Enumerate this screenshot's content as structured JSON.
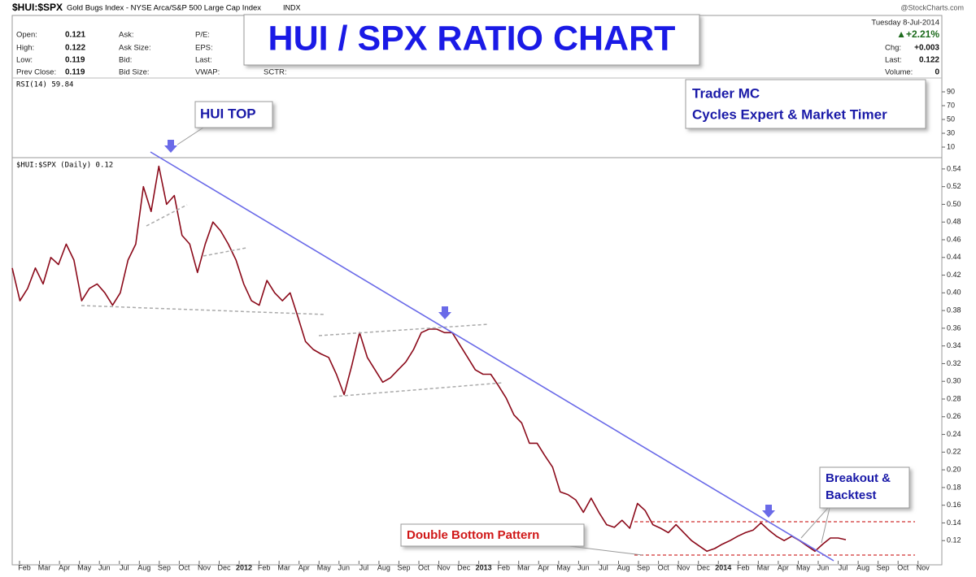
{
  "header": {
    "symbol": "$HUI:$SPX",
    "description": "Gold Bugs Index - NYSE Arca/S&P 500 Large Cap Index",
    "exchange": "INDX",
    "source": "@StockCharts.com",
    "date": "Tuesday  8-Jul-2014"
  },
  "quote": {
    "open_label": "Open:",
    "open": "0.121",
    "high_label": "High:",
    "high": "0.122",
    "low_label": "Low:",
    "low": "0.119",
    "prev_label": "Prev Close:",
    "prev": "0.119",
    "ask": "Ask:",
    "ask_size": "Ask Size:",
    "bid": "Bid:",
    "bid_size": "Bid Size:",
    "pe": "P/E:",
    "eps": "EPS:",
    "last_mid": "Last:",
    "vwap": "VWAP:",
    "sctr": "SCTR:",
    "change_pct": "▲+2.21%",
    "chg_label": "Chg:",
    "chg": "+0.003",
    "last_label": "Last:",
    "last": "0.122",
    "volume_label": "Volume:",
    "volume": "0"
  },
  "rsi": {
    "label": "RSI(14) 59.84",
    "ylim": [
      0,
      100
    ],
    "yticks": [
      10,
      30,
      50,
      70,
      90
    ]
  },
  "chart_data": {
    "type": "line",
    "title": "HUI / SPX RATIO CHART",
    "legend": "$HUI:$SPX (Daily) 0.12",
    "annotations": {
      "top": "HUI TOP",
      "author": "Trader MC",
      "author_sub": "Cycles Expert & Market Timer",
      "breakout1": "Breakout &",
      "breakout2": "Backtest",
      "double_bottom": "Double Bottom Pattern"
    },
    "xticks": [
      "Feb",
      "Mar",
      "Apr",
      "May",
      "Jun",
      "Jul",
      "Aug",
      "Sep",
      "Oct",
      "Nov",
      "Dec",
      "2012",
      "Feb",
      "Mar",
      "Apr",
      "May",
      "Jun",
      "Jul",
      "Aug",
      "Sep",
      "Oct",
      "Nov",
      "Dec",
      "2013",
      "Feb",
      "Mar",
      "Apr",
      "May",
      "Jun",
      "Jul",
      "Aug",
      "Sep",
      "Oct",
      "Nov",
      "Dec",
      "2014",
      "Feb",
      "Mar",
      "Apr",
      "May",
      "Jun",
      "Jul",
      "Aug",
      "Sep",
      "Oct",
      "Nov"
    ],
    "ylim": [
      0.1,
      0.55
    ],
    "yticks": [
      0.12,
      0.14,
      0.16,
      0.18,
      {
        "value": 0.2,
        "label": "0.20"
      },
      0.22,
      0.24,
      0.26,
      0.28,
      {
        "value": 0.3,
        "label": "0.30"
      },
      0.32,
      0.34,
      0.36,
      0.38,
      {
        "value": 0.4,
        "label": "0.40"
      },
      0.42,
      0.44,
      0.46,
      0.48,
      {
        "value": 0.5,
        "label": "0.50"
      },
      0.52,
      0.54
    ],
    "series": [
      {
        "name": "$HUI:$SPX",
        "color": "#8b0a1a",
        "values": [
          0.428,
          0.391,
          0.405,
          0.428,
          0.41,
          0.44,
          0.432,
          0.455,
          0.437,
          0.391,
          0.405,
          0.41,
          0.4,
          0.386,
          0.4,
          0.437,
          0.455,
          0.52,
          0.492,
          0.543,
          0.5,
          0.51,
          0.465,
          0.455,
          0.423,
          0.455,
          0.48,
          0.47,
          0.455,
          0.437,
          0.41,
          0.391,
          0.386,
          0.414,
          0.4,
          0.391,
          0.4,
          0.373,
          0.345,
          0.336,
          0.331,
          0.327,
          0.308,
          0.285,
          0.318,
          0.355,
          0.327,
          0.313,
          0.299,
          0.304,
          0.313,
          0.322,
          0.336,
          0.355,
          0.359,
          0.359,
          0.355,
          0.355,
          0.341,
          0.327,
          0.313,
          0.308,
          0.308,
          0.295,
          0.281,
          0.262,
          0.253,
          0.23,
          0.23,
          0.216,
          0.203,
          0.175,
          0.172,
          0.166,
          0.152,
          0.168,
          0.152,
          0.138,
          0.135,
          0.143,
          0.134,
          0.162,
          0.154,
          0.138,
          0.134,
          0.129,
          0.138,
          0.129,
          0.12,
          0.114,
          0.108,
          0.111,
          0.116,
          0.12,
          0.125,
          0.129,
          0.132,
          0.14,
          0.132,
          0.125,
          0.12,
          0.125,
          0.12,
          0.114,
          0.108,
          0.116,
          0.123,
          0.123,
          0.121
        ]
      }
    ]
  }
}
